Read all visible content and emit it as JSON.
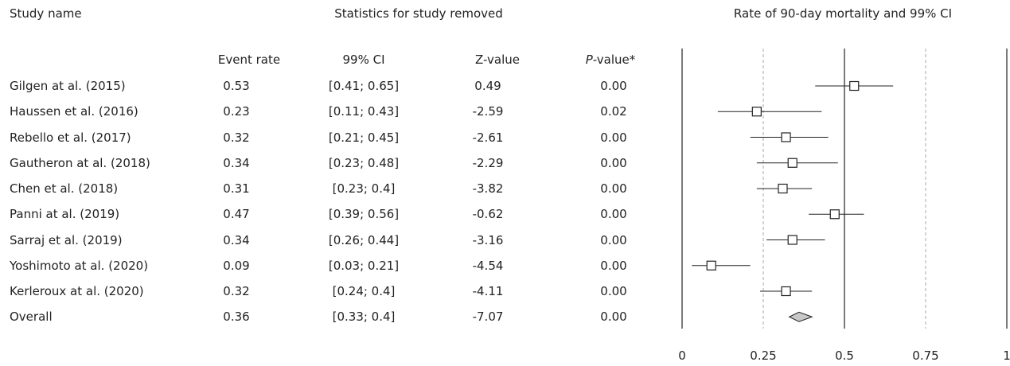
{
  "headers": {
    "study_name": "Study name",
    "stats_group": "Statistics for study removed",
    "plot_title": "Rate of 90-day mortality and 99% CI"
  },
  "columns": {
    "event_rate": "Event rate",
    "ci": "99% CI",
    "z": "Z-value",
    "p_italic": "P",
    "p_rest": "-value*"
  },
  "rows": [
    {
      "study": "Gilgen at al. (2015)",
      "rate": "0.53",
      "ci": "[0.41; 0.65]",
      "z": "0.49",
      "p": "0.00"
    },
    {
      "study": "Haussen et al. (2016)",
      "rate": "0.23",
      "ci": "[0.11; 0.43]",
      "z": "-2.59",
      "p": "0.02"
    },
    {
      "study": "Rebello et al. (2017)",
      "rate": "0.32",
      "ci": "[0.21; 0.45]",
      "z": "-2.61",
      "p": "0.00"
    },
    {
      "study": "Gautheron at al. (2018)",
      "rate": "0.34",
      "ci": "[0.23; 0.48]",
      "z": "-2.29",
      "p": "0.00"
    },
    {
      "study": "Chen et al. (2018)",
      "rate": "0.31",
      "ci": "[0.23; 0.4]",
      "z": "-3.82",
      "p": "0.00"
    },
    {
      "study": "Panni at al. (2019)",
      "rate": "0.47",
      "ci": "[0.39; 0.56]",
      "z": "-0.62",
      "p": "0.00"
    },
    {
      "study": "Sarraj et al. (2019)",
      "rate": "0.34",
      "ci": "[0.26; 0.44]",
      "z": "-3.16",
      "p": "0.00"
    },
    {
      "study": "Yoshimoto at al. (2020)",
      "rate": "0.09",
      "ci": "[0.03; 0.21]",
      "z": "-4.54",
      "p": "0.00"
    },
    {
      "study": "Kerleroux at al. (2020)",
      "rate": "0.32",
      "ci": "[0.24; 0.4]",
      "z": "-4.11",
      "p": "0.00"
    }
  ],
  "overall": {
    "study": "Overall",
    "rate": "0.36",
    "ci": "[0.33; 0.4]",
    "z": "-7.07",
    "p": "0.00"
  },
  "chart_data": {
    "type": "forest",
    "title": "Rate of 90-day mortality and 99% CI",
    "xlim": [
      0,
      1
    ],
    "xticks": [
      "0",
      "0.25",
      "0.5",
      "0.75",
      "1"
    ],
    "tick_values": [
      0,
      0.25,
      0.5,
      0.75,
      1
    ],
    "dashed_reference_lines": [
      0.25,
      0.75
    ],
    "solid_reference_lines": [
      0,
      0.5,
      1
    ],
    "studies": [
      {
        "name": "Gilgen at al. (2015)",
        "estimate": 0.53,
        "lower": 0.41,
        "upper": 0.65
      },
      {
        "name": "Haussen et al. (2016)",
        "estimate": 0.23,
        "lower": 0.11,
        "upper": 0.43
      },
      {
        "name": "Rebello et al. (2017)",
        "estimate": 0.32,
        "lower": 0.21,
        "upper": 0.45
      },
      {
        "name": "Gautheron at al. (2018)",
        "estimate": 0.34,
        "lower": 0.23,
        "upper": 0.48
      },
      {
        "name": "Chen et al. (2018)",
        "estimate": 0.31,
        "lower": 0.23,
        "upper": 0.4
      },
      {
        "name": "Panni at al. (2019)",
        "estimate": 0.47,
        "lower": 0.39,
        "upper": 0.56
      },
      {
        "name": "Sarraj et al. (2019)",
        "estimate": 0.34,
        "lower": 0.26,
        "upper": 0.44
      },
      {
        "name": "Yoshimoto at al. (2020)",
        "estimate": 0.09,
        "lower": 0.03,
        "upper": 0.21
      },
      {
        "name": "Kerleroux at al. (2020)",
        "estimate": 0.32,
        "lower": 0.24,
        "upper": 0.4
      }
    ],
    "overall": {
      "name": "Overall",
      "estimate": 0.36,
      "lower": 0.33,
      "upper": 0.4
    },
    "colors": {
      "line": "#222222",
      "dashed": "#aaaaaa",
      "diamond_fill": "#c8c8c8",
      "marker_fill": "#ffffff"
    }
  }
}
